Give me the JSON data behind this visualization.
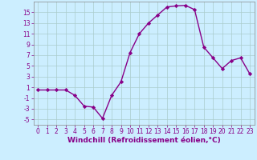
{
  "x": [
    0,
    1,
    2,
    3,
    4,
    5,
    6,
    7,
    8,
    9,
    10,
    11,
    12,
    13,
    14,
    15,
    16,
    17,
    18,
    19,
    20,
    21,
    22,
    23
  ],
  "y": [
    0.5,
    0.5,
    0.5,
    0.5,
    -0.5,
    -2.5,
    -2.7,
    -4.8,
    -0.5,
    2.0,
    7.5,
    11.0,
    13.0,
    14.5,
    16.0,
    16.2,
    16.3,
    15.5,
    8.5,
    6.5,
    4.5,
    6.0,
    6.5,
    3.5
  ],
  "line_color": "#880088",
  "marker": "D",
  "marker_size": 2.2,
  "linewidth": 1.0,
  "xlabel": "Windchill (Refroidissement éolien,°C)",
  "xlabel_fontsize": 6.5,
  "ylim": [
    -6,
    17
  ],
  "xlim": [
    -0.5,
    23.5
  ],
  "yticks": [
    -5,
    -3,
    -1,
    1,
    3,
    5,
    7,
    9,
    11,
    13,
    15
  ],
  "xticks": [
    0,
    1,
    2,
    3,
    4,
    5,
    6,
    7,
    8,
    9,
    10,
    11,
    12,
    13,
    14,
    15,
    16,
    17,
    18,
    19,
    20,
    21,
    22,
    23
  ],
  "tick_fontsize": 5.5,
  "background_color": "#cceeff",
  "grid_color": "#aacccc",
  "tick_color": "#880088",
  "spine_color": "#888888"
}
